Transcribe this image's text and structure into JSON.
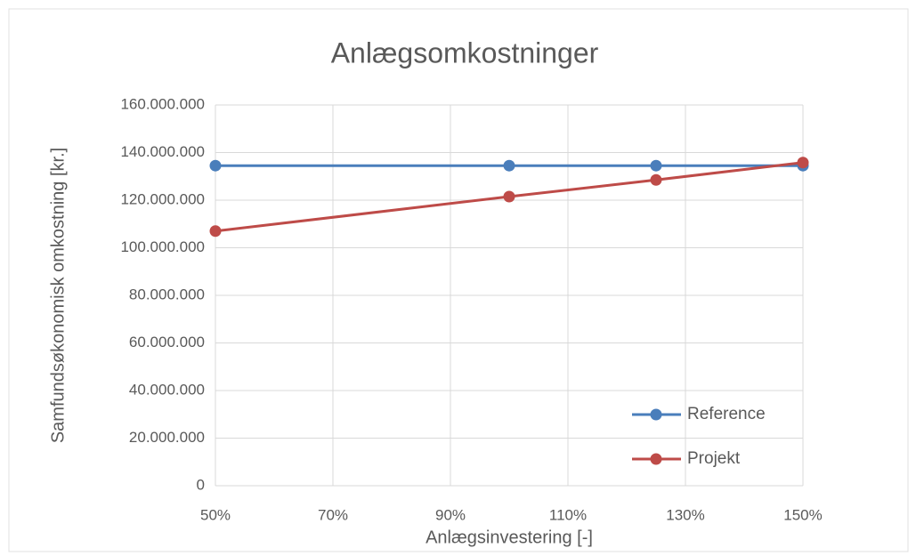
{
  "chart_data": {
    "type": "line",
    "title": "Anlægsomkostninger",
    "x_label": "Anlægsinvestering [-]",
    "y_label": "Samfundsøkonomisk omkostning [kr.]",
    "x": [
      50,
      100,
      125,
      150
    ],
    "series": [
      {
        "name": "Reference",
        "color": "#4a7ebb",
        "values": [
          134500000,
          134500000,
          134500000,
          134500000
        ]
      },
      {
        "name": "Projekt",
        "color": "#be4b48",
        "values": [
          107000000,
          121500000,
          128500000,
          135800000
        ]
      }
    ],
    "xlim": [
      50,
      150
    ],
    "xticks": [
      {
        "value": 50,
        "label": "50%"
      },
      {
        "value": 70,
        "label": "70%"
      },
      {
        "value": 90,
        "label": "90%"
      },
      {
        "value": 110,
        "label": "110%"
      },
      {
        "value": 130,
        "label": "130%"
      },
      {
        "value": 150,
        "label": "150%"
      }
    ],
    "ylim": [
      0,
      160000000
    ],
    "yticks": [
      0,
      {
        "value": 20000000,
        "label": "20.000.000"
      },
      {
        "value": 40000000,
        "label": "40.000.000"
      },
      {
        "value": 60000000,
        "label": "60.000.000"
      },
      {
        "value": 80000000,
        "label": "80.000.000"
      },
      {
        "value": 100000000,
        "label": "100.000.000"
      },
      {
        "value": 120000000,
        "label": "120.000.000"
      },
      {
        "value": 140000000,
        "label": "140.000.000"
      },
      {
        "value": 160000000,
        "label": "160.000.000"
      }
    ],
    "grid": true,
    "legend": "lower right"
  }
}
